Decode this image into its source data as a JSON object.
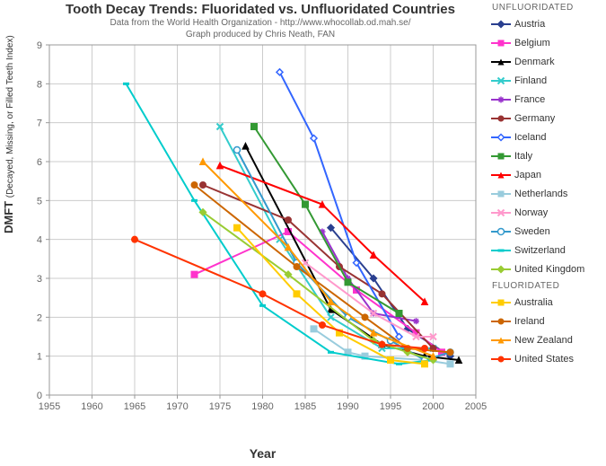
{
  "title": "Tooth Decay Trends:  Fluoridated vs. Unfluoridated Countries",
  "subtitle_line1": "Data from the World Health Organization - http://www.whocollab.od.mah.se/",
  "subtitle_line2": "Graph produced by Chris Neath, FAN",
  "title_fontsize": 15,
  "subtitle_fontsize": 10,
  "title_color": "#333333",
  "subtitle_color": "#666666",
  "background_color": "#ffffff",
  "xlabel": "Year",
  "ylabel_main": "DMFT",
  "ylabel_sub": "(Decayed, Missing, or Filled Teeth Index)",
  "xlim": [
    1955,
    2005
  ],
  "ylim": [
    0,
    9
  ],
  "xtick_step": 5,
  "ytick_step": 1,
  "grid_color": "#cccccc",
  "axis_color": "#999999",
  "line_width": 2,
  "marker_size": 7,
  "legend": {
    "group1_header": "UNFLUORIDATED",
    "group2_header": "FLUORIDATED"
  },
  "series": [
    {
      "name": "Austria",
      "group": 1,
      "color": "#2a3f8f",
      "marker": "diamond",
      "points": [
        [
          1988,
          4.3
        ],
        [
          1993,
          3.0
        ],
        [
          1997,
          1.7
        ],
        [
          2002,
          1.0
        ]
      ]
    },
    {
      "name": "Belgium",
      "group": 1,
      "color": "#ff33cc",
      "marker": "square",
      "points": [
        [
          1972,
          3.1
        ],
        [
          1983,
          4.2
        ],
        [
          1991,
          2.7
        ],
        [
          1998,
          1.6
        ],
        [
          2001,
          1.1
        ]
      ]
    },
    {
      "name": "Denmark",
      "group": 1,
      "color": "#000000",
      "marker": "triangle",
      "points": [
        [
          1978,
          6.4
        ],
        [
          1988,
          2.2
        ],
        [
          1994,
          1.3
        ],
        [
          1999,
          1.0
        ],
        [
          2003,
          0.9
        ]
      ]
    },
    {
      "name": "Finland",
      "group": 1,
      "color": "#33cccc",
      "marker": "x",
      "points": [
        [
          1975,
          6.9
        ],
        [
          1982,
          4.0
        ],
        [
          1988,
          2.0
        ],
        [
          1994,
          1.2
        ],
        [
          2000,
          1.2
        ]
      ]
    },
    {
      "name": "France",
      "group": 1,
      "color": "#9933cc",
      "marker": "star",
      "points": [
        [
          1987,
          4.2
        ],
        [
          1990,
          3.0
        ],
        [
          1993,
          2.1
        ],
        [
          1998,
          1.9
        ]
      ]
    },
    {
      "name": "Germany",
      "group": 1,
      "color": "#993333",
      "marker": "circle",
      "points": [
        [
          1973,
          5.4
        ],
        [
          1983,
          4.5
        ],
        [
          1989,
          3.3
        ],
        [
          1994,
          2.6
        ],
        [
          2000,
          1.2
        ]
      ]
    },
    {
      "name": "Iceland",
      "group": 1,
      "color": "#3366ff",
      "marker": "diamond-open",
      "points": [
        [
          1982,
          8.3
        ],
        [
          1986,
          6.6
        ],
        [
          1991,
          3.4
        ],
        [
          1996,
          1.5
        ]
      ]
    },
    {
      "name": "Italy",
      "group": 1,
      "color": "#339933",
      "marker": "square",
      "points": [
        [
          1979,
          6.9
        ],
        [
          1985,
          4.9
        ],
        [
          1990,
          2.9
        ],
        [
          1996,
          2.1
        ]
      ]
    },
    {
      "name": "Japan",
      "group": 1,
      "color": "#ff0000",
      "marker": "triangle",
      "points": [
        [
          1975,
          5.9
        ],
        [
          1987,
          4.9
        ],
        [
          1993,
          3.6
        ],
        [
          1999,
          2.4
        ]
      ]
    },
    {
      "name": "Netherlands",
      "group": 1,
      "color": "#99ccdd",
      "marker": "square",
      "points": [
        [
          1986,
          1.7
        ],
        [
          1990,
          1.1
        ],
        [
          1992,
          1.0
        ],
        [
          1999,
          0.9
        ],
        [
          2002,
          0.8
        ]
      ]
    },
    {
      "name": "Norway",
      "group": 1,
      "color": "#ff99cc",
      "marker": "x",
      "points": [
        [
          1985,
          3.4
        ],
        [
          1993,
          2.1
        ],
        [
          1998,
          1.5
        ],
        [
          2000,
          1.5
        ]
      ]
    },
    {
      "name": "Sweden",
      "group": 1,
      "color": "#3399cc",
      "marker": "circle-open",
      "points": [
        [
          1977,
          6.3
        ],
        [
          1984,
          3.4
        ],
        [
          1990,
          2.0
        ],
        [
          1995,
          1.4
        ],
        [
          1999,
          0.9
        ],
        [
          2002,
          1.1
        ]
      ]
    },
    {
      "name": "Switzerland",
      "group": 1,
      "color": "#00cccc",
      "marker": "line",
      "points": [
        [
          1964,
          8.0
        ],
        [
          1972,
          5.0
        ],
        [
          1980,
          2.3
        ],
        [
          1988,
          1.1
        ],
        [
          1996,
          0.8
        ],
        [
          2000,
          0.9
        ]
      ]
    },
    {
      "name": "United Kingdom",
      "group": 1,
      "color": "#99cc33",
      "marker": "diamond",
      "points": [
        [
          1973,
          4.7
        ],
        [
          1983,
          3.1
        ],
        [
          1993,
          1.4
        ],
        [
          1997,
          1.1
        ],
        [
          2000,
          0.9
        ]
      ]
    },
    {
      "name": "Australia",
      "group": 2,
      "color": "#ffcc00",
      "marker": "square",
      "points": [
        [
          1977,
          4.3
        ],
        [
          1984,
          2.6
        ],
        [
          1989,
          1.6
        ],
        [
          1995,
          0.9
        ],
        [
          1999,
          0.8
        ]
      ]
    },
    {
      "name": "Ireland",
      "group": 2,
      "color": "#cc6600",
      "marker": "circle",
      "points": [
        [
          1972,
          5.4
        ],
        [
          1984,
          3.3
        ],
        [
          1992,
          2.0
        ],
        [
          1997,
          1.2
        ],
        [
          2002,
          1.1
        ]
      ]
    },
    {
      "name": "New Zealand",
      "group": 2,
      "color": "#ff9900",
      "marker": "triangle",
      "points": [
        [
          1973,
          6.0
        ],
        [
          1983,
          3.8
        ],
        [
          1988,
          2.4
        ],
        [
          1993,
          1.6
        ],
        [
          2000,
          1.0
        ]
      ]
    },
    {
      "name": "United States",
      "group": 2,
      "color": "#ff3300",
      "marker": "circle",
      "points": [
        [
          1965,
          4.0
        ],
        [
          1980,
          2.6
        ],
        [
          1987,
          1.8
        ],
        [
          1994,
          1.3
        ],
        [
          1999,
          1.2
        ]
      ]
    }
  ]
}
